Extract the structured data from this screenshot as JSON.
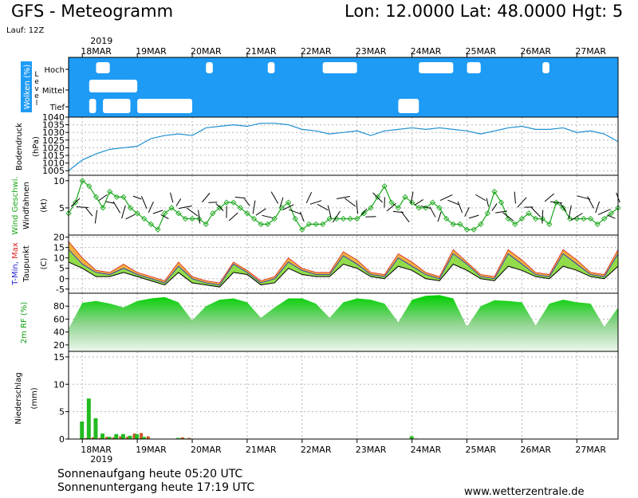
{
  "header": {
    "title": "GFS - Meteogramm",
    "location": "Lon: 12.0000  Lat: 48.0000  Hgt: 5",
    "run": "Lauf: 12Z"
  },
  "footer": {
    "sunrise": "Sonnenaufgang heute 05:20 UTC",
    "sunset": "Sonnenuntergang heute 17:19 UTC",
    "website": "www.wetterzentrale.de"
  },
  "colors": {
    "sky": "#1e9bf5",
    "pressure": "#1e8fd0",
    "wind": "#19a819",
    "tmin": "#2222cc",
    "tmax": "#dd2222",
    "rh": "#11c011",
    "precip_conv": "#22bb22",
    "precip_large": "#cc5522"
  },
  "chart_data": {
    "type": "meteogram",
    "year": "2019",
    "dates": [
      "18MAR",
      "19MAR",
      "20MAR",
      "21MAR",
      "22MAR",
      "23MAR",
      "24MAR",
      "25MAR",
      "26MAR",
      "27MAR"
    ],
    "x_start_hours": -6,
    "x_end_hours": 234,
    "panels": {
      "clouds": {
        "label": "Wolken (%)",
        "sublabel": "Level",
        "levels": [
          "Hoch",
          "Mittel",
          "Tief"
        ],
        "clear_spans": [
          {
            "level": "Hoch",
            "from": 6,
            "to": 12
          },
          {
            "level": "Hoch",
            "from": 54,
            "to": 57
          },
          {
            "level": "Hoch",
            "from": 81,
            "to": 84
          },
          {
            "level": "Hoch",
            "from": 105,
            "to": 120
          },
          {
            "level": "Hoch",
            "from": 147,
            "to": 162
          },
          {
            "level": "Hoch",
            "from": 168,
            "to": 174
          },
          {
            "level": "Hoch",
            "from": 201,
            "to": 204
          },
          {
            "level": "Mittel",
            "from": 3,
            "to": 24
          },
          {
            "level": "Tief",
            "from": 3,
            "to": 6
          },
          {
            "level": "Tief",
            "from": 9,
            "to": 21
          },
          {
            "level": "Tief",
            "from": 24,
            "to": 48
          },
          {
            "level": "Tief",
            "from": 138,
            "to": 147
          }
        ]
      },
      "pressure": {
        "label": "Bodendruck",
        "unit": "(hPa)",
        "ylim": [
          1002,
          1040
        ],
        "ticks": [
          1005,
          1010,
          1015,
          1020,
          1025,
          1030,
          1035,
          1040
        ],
        "x": [
          -6,
          0,
          6,
          12,
          18,
          24,
          30,
          36,
          42,
          48,
          54,
          60,
          66,
          72,
          78,
          84,
          90,
          96,
          102,
          108,
          114,
          120,
          126,
          132,
          138,
          144,
          150,
          156,
          162,
          168,
          174,
          180,
          186,
          192,
          198,
          204,
          210,
          216,
          222,
          228,
          234
        ],
        "values": [
          1005,
          1012,
          1016,
          1019,
          1020,
          1021,
          1026,
          1028,
          1029,
          1028,
          1033,
          1034,
          1035,
          1034,
          1036,
          1036,
          1035,
          1032,
          1031,
          1029,
          1030,
          1031,
          1028,
          1031,
          1032,
          1033,
          1032,
          1033,
          1032,
          1031,
          1029,
          1031,
          1033,
          1034,
          1032,
          1032,
          1033,
          1030,
          1031,
          1029,
          1024
        ]
      },
      "wind": {
        "label": "Wind Geschwi.",
        "sublabel": "Windfahnen",
        "unit": "(kt)",
        "ylim": [
          0,
          11
        ],
        "ticks": [
          5,
          10
        ],
        "x": [
          -6,
          -3,
          0,
          3,
          6,
          9,
          12,
          15,
          18,
          21,
          24,
          27,
          30,
          33,
          36,
          39,
          42,
          45,
          48,
          51,
          54,
          57,
          60,
          63,
          66,
          69,
          72,
          75,
          78,
          81,
          84,
          87,
          90,
          93,
          96,
          99,
          102,
          105,
          108,
          111,
          114,
          117,
          120,
          123,
          126,
          129,
          132,
          135,
          138,
          141,
          144,
          147,
          150,
          153,
          156,
          159,
          162,
          165,
          168,
          171,
          174,
          177,
          180,
          183,
          186,
          189,
          192,
          195,
          198,
          201,
          204,
          207,
          210,
          213,
          216,
          219,
          222,
          225,
          228,
          231,
          234
        ],
        "values": [
          4,
          6,
          10,
          9,
          7,
          5,
          8,
          7,
          7,
          5,
          4,
          3,
          2,
          1,
          4,
          5,
          4,
          3,
          3,
          3,
          2,
          4,
          5,
          6,
          6,
          5,
          4,
          3,
          2,
          2,
          3,
          5,
          6,
          3,
          1,
          2,
          2,
          2,
          3,
          3,
          3,
          3,
          3,
          4,
          5,
          7,
          9,
          6,
          5,
          7,
          6,
          5,
          5,
          6,
          5,
          3,
          2,
          2,
          1,
          1,
          2,
          4,
          8,
          6,
          3,
          2,
          3,
          4,
          3,
          3,
          2,
          6,
          5,
          3,
          3,
          3,
          3,
          2,
          3,
          4,
          5
        ]
      },
      "temperature": {
        "label_min": "T-Min,",
        "label_max": "Max",
        "sublabel": "Taupunkt",
        "unit": "(C)",
        "ylim": [
          -7,
          21
        ],
        "ticks": [
          -5,
          0,
          5,
          10,
          15,
          20
        ],
        "x": [
          -6,
          0,
          6,
          12,
          18,
          24,
          30,
          36,
          42,
          48,
          54,
          60,
          66,
          72,
          78,
          84,
          90,
          96,
          102,
          108,
          114,
          120,
          126,
          132,
          138,
          144,
          150,
          156,
          162,
          168,
          174,
          180,
          186,
          192,
          198,
          204,
          210,
          216,
          222,
          228,
          234
        ],
        "tmax": [
          18,
          10,
          4,
          3,
          7,
          3,
          1,
          -1,
          8,
          1,
          -1,
          -2,
          8,
          4,
          -1,
          1,
          10,
          5,
          3,
          3,
          13,
          9,
          3,
          2,
          12,
          8,
          3,
          1,
          14,
          8,
          2,
          1,
          14,
          9,
          3,
          2,
          14,
          9,
          3,
          2,
          14
        ],
        "tmin": [
          14,
          7,
          3,
          2,
          5,
          2,
          0,
          -2,
          6,
          0,
          -2,
          -3,
          7,
          3,
          -2,
          0,
          8,
          4,
          2,
          2,
          11,
          7,
          2,
          1,
          10,
          6,
          2,
          0,
          12,
          7,
          1,
          0,
          12,
          7,
          2,
          1,
          12,
          7,
          2,
          1,
          12
        ],
        "dewpoint": [
          8,
          5,
          1,
          1,
          3,
          1,
          -1,
          -3,
          3,
          -2,
          -3,
          -4,
          3,
          2,
          -3,
          -2,
          5,
          2,
          1,
          1,
          7,
          5,
          1,
          0,
          6,
          4,
          0,
          -1,
          7,
          4,
          0,
          -1,
          6,
          4,
          1,
          0,
          6,
          4,
          1,
          0,
          6
        ]
      },
      "humidity": {
        "label": "2m RF (%)",
        "ylim": [
          10,
          100
        ],
        "ticks": [
          20,
          40,
          60,
          80
        ],
        "x": [
          -6,
          0,
          6,
          12,
          18,
          24,
          30,
          36,
          42,
          48,
          54,
          60,
          66,
          72,
          78,
          84,
          90,
          96,
          102,
          108,
          114,
          120,
          126,
          132,
          138,
          144,
          150,
          156,
          162,
          168,
          174,
          180,
          186,
          192,
          198,
          204,
          210,
          216,
          222,
          228,
          234
        ],
        "values": [
          45,
          85,
          88,
          84,
          78,
          88,
          92,
          94,
          86,
          58,
          80,
          90,
          92,
          86,
          62,
          78,
          92,
          92,
          84,
          62,
          86,
          92,
          90,
          84,
          55,
          90,
          96,
          97,
          92,
          48,
          80,
          89,
          88,
          86,
          50,
          84,
          90,
          86,
          84,
          48,
          78
        ]
      },
      "precipitation": {
        "label": "Niederschlag",
        "unit": "(mm)",
        "ylim": [
          0,
          16
        ],
        "ticks": [
          0,
          5,
          10,
          15
        ],
        "x": [
          0,
          3,
          6,
          9,
          12,
          15,
          18,
          21,
          24,
          27,
          42,
          45,
          144
        ],
        "convective": [
          3.2,
          7.4,
          3.8,
          1.0,
          0.4,
          0.9,
          0.9,
          0.6,
          0.9,
          0.4,
          0.2,
          0.1,
          0.5
        ],
        "large_scale": [
          0.2,
          0.3,
          0.2,
          0.4,
          0.3,
          0.5,
          0.4,
          1.0,
          1.1,
          0.5,
          0.3,
          0.2,
          0.1
        ]
      }
    }
  }
}
